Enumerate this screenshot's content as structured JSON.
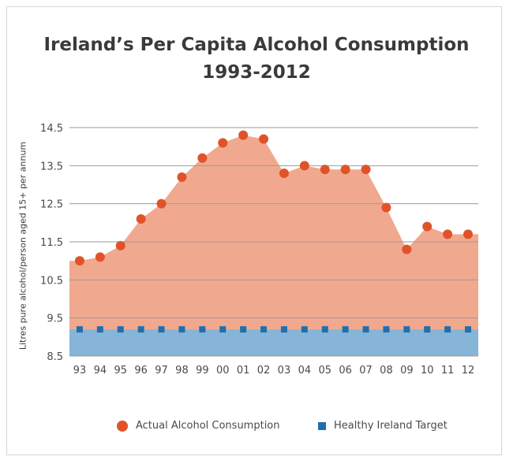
{
  "chart_data": {
    "type": "area",
    "title": "Ireland’s Per Capita Alcohol Consumption",
    "subtitle": "1993-2012",
    "ylabel": "Litres pure alcohol/person aged 15+ per annum",
    "xlabel": "",
    "ylim": [
      8.5,
      14.5
    ],
    "yticks": [
      "8.5",
      "9.5",
      "10.5",
      "11.5",
      "12.5",
      "13.5",
      "14.5"
    ],
    "categories": [
      "93",
      "94",
      "95",
      "96",
      "97",
      "98",
      "99",
      "00",
      "01",
      "02",
      "03",
      "04",
      "05",
      "06",
      "07",
      "08",
      "09",
      "10",
      "11",
      "12"
    ],
    "series": [
      {
        "name": "Actual Alcohol Consumption",
        "color": "#e0532a",
        "fill": "#f0a98e",
        "values": [
          11.0,
          11.1,
          11.4,
          12.1,
          12.5,
          13.2,
          13.7,
          14.1,
          14.3,
          14.2,
          13.3,
          13.5,
          13.4,
          13.4,
          13.4,
          12.4,
          11.3,
          11.9,
          11.7,
          11.7
        ]
      },
      {
        "name": "Healthy Ireland Target",
        "color": "#1f6fae",
        "fill": "#87b5d8",
        "values": [
          9.2,
          9.2,
          9.2,
          9.2,
          9.2,
          9.2,
          9.2,
          9.2,
          9.2,
          9.2,
          9.2,
          9.2,
          9.2,
          9.2,
          9.2,
          9.2,
          9.2,
          9.2,
          9.2,
          9.2
        ]
      }
    ],
    "grid": true,
    "legend_position": "bottom-right"
  }
}
